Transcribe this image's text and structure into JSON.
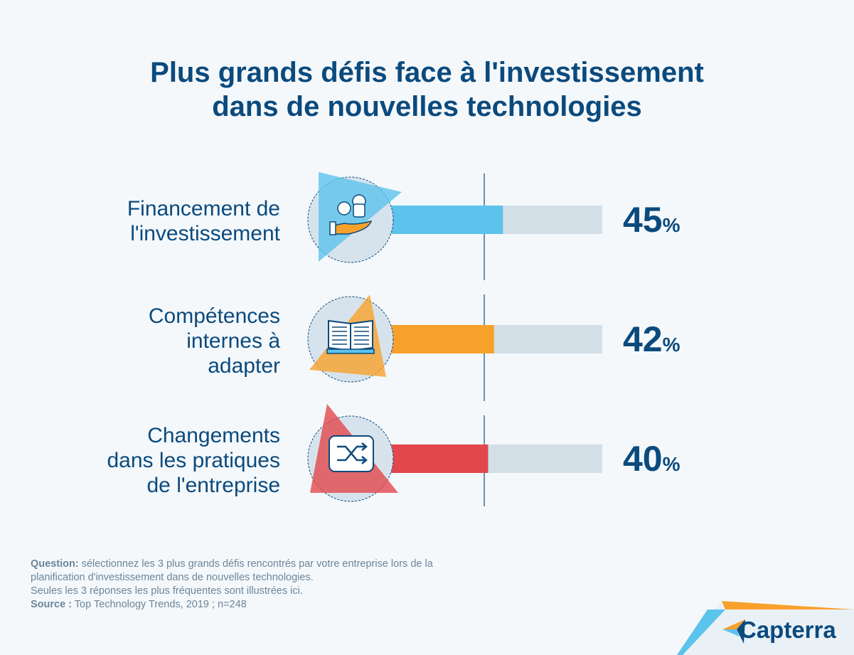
{
  "title": {
    "line1": "Plus grands défis face à l'investissement",
    "line2": "dans de nouvelles technologies"
  },
  "chart_data": {
    "type": "bar",
    "orientation": "horizontal",
    "title": "Plus grands défis face à l'investissement dans de nouvelles technologies",
    "categories": [
      "Financement de l'investissement",
      "Compétences internes à adapter",
      "Changements dans les pratiques de l'entreprise"
    ],
    "values": [
      45,
      42,
      40
    ],
    "unit": "%",
    "xlim": [
      0,
      100
    ],
    "colors": [
      "#5cc3ec",
      "#f7a12b",
      "#e2474c"
    ],
    "track_color": "#d3dfe7"
  },
  "rows": [
    {
      "label_lines": [
        "Financement de",
        "l'investissement"
      ],
      "value": "45",
      "unit": "%",
      "icon": "coins-hand-icon"
    },
    {
      "label_lines": [
        "Compétences",
        "internes à",
        "adapter"
      ],
      "value": "42",
      "unit": "%",
      "icon": "open-book-icon"
    },
    {
      "label_lines": [
        "Changements",
        "dans les pratiques",
        "de l'entreprise"
      ],
      "value": "40",
      "unit": "%",
      "icon": "shuffle-icon"
    }
  ],
  "footnote": {
    "question_label": "Question:",
    "question_text": " sélectionnez les 3 plus grands défis rencontrés par votre entreprise lors de la planification d'investissement dans de nouvelles technologies.",
    "note": "Seules les 3 réponses les plus fréquentes sont illustrées ici.",
    "source_label": "Source :",
    "source_text": " Top Technology Trends, 2019 ; n=248"
  },
  "brand": {
    "name": "Capterra"
  }
}
